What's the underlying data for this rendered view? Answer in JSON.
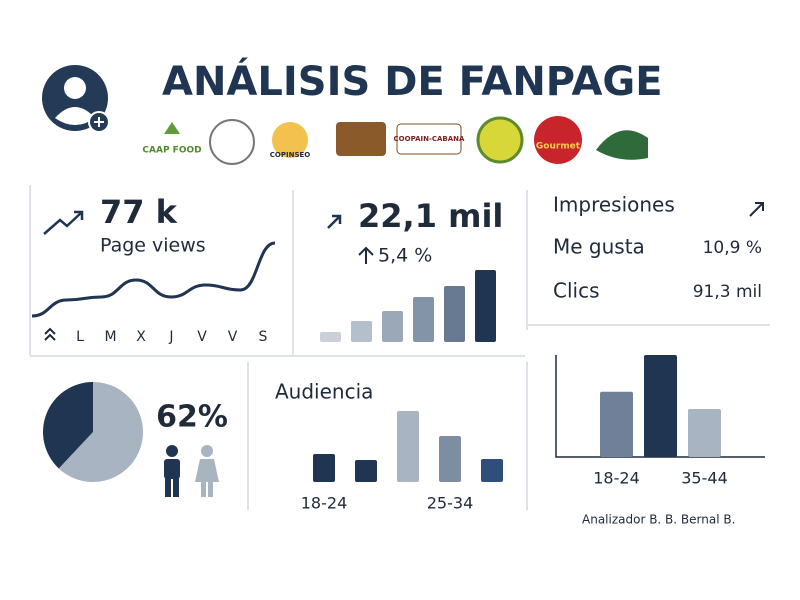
{
  "header": {
    "title": "ANÁLISIS DE FANPAGE",
    "logos": [
      "CAAP FOOD",
      "COPINSEO",
      "COOPAIN-CABANA",
      "Gourmet"
    ]
  },
  "cards": {
    "page_views": {
      "value": "77 k",
      "label": "Page views",
      "days": [
        "L",
        "M",
        "X",
        "J",
        "V",
        "V",
        "S"
      ]
    },
    "growth": {
      "value": "22,1 mil",
      "change": "5,4 %"
    },
    "metrics": [
      {
        "label": "Impresiones"
      },
      {
        "label": "Me gusta",
        "value": "10,9 %"
      },
      {
        "label": "Clics",
        "value": "91,3 mil"
      }
    ]
  },
  "chart_data": [
    {
      "type": "line",
      "color": "#1f3552",
      "values": [
        4,
        20,
        23,
        40,
        23,
        35,
        30,
        77
      ],
      "ylim": [
        0,
        80
      ]
    },
    {
      "type": "bar",
      "values": [
        10,
        21,
        31,
        45,
        56,
        72
      ],
      "colors": [
        "#c9d0da",
        "#b4bfcc",
        "#9ba8b8",
        "#8394a8",
        "#677a92",
        "#1f3552"
      ],
      "ylim": [
        0,
        72
      ]
    },
    {
      "type": "pie",
      "values": [
        62,
        38
      ],
      "value_labels": [
        "62%",
        null
      ],
      "colors": [
        "#a9b4c2",
        "#1f3552"
      ]
    },
    {
      "type": "bar",
      "title": "Audiencia",
      "categories": [
        "18-24",
        null,
        null,
        "25-34",
        null
      ],
      "values": [
        28,
        22,
        71,
        46,
        23
      ],
      "colors": [
        "#1f3552",
        "#1f3552",
        "#a9b4c2",
        "#7d8da2",
        "#2f4f7a"
      ],
      "ylim": [
        0,
        75
      ]
    },
    {
      "type": "bar",
      "categories": [
        "18-24",
        null,
        "35-44"
      ],
      "values": [
        64,
        100,
        47
      ],
      "colors": [
        "#6f8199",
        "#1f3552",
        "#a9b4c2"
      ],
      "ylim": [
        0,
        100
      ]
    }
  ],
  "footer": "Analizador B. B. Bernal B."
}
